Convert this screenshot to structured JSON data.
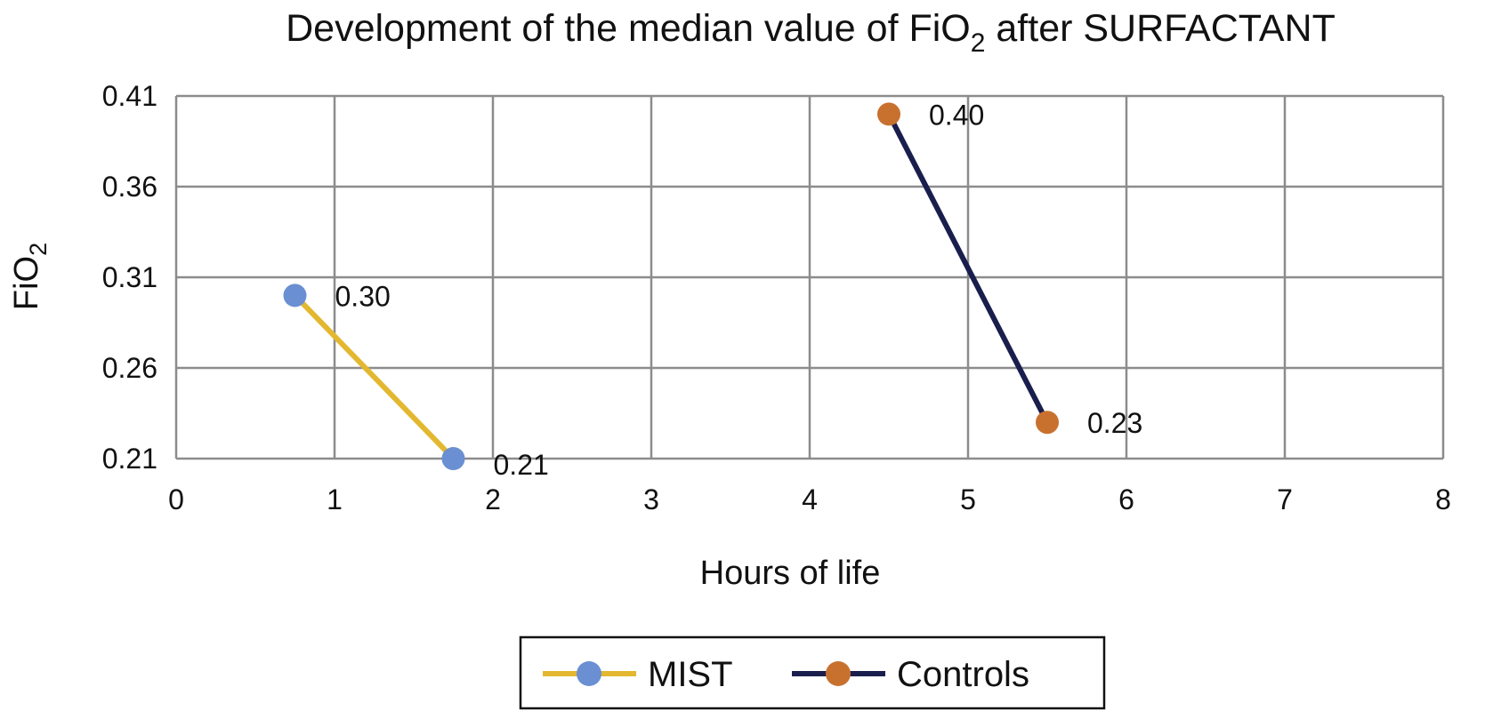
{
  "chart_data": {
    "type": "line",
    "title": "Development of the median value of FiO",
    "title_subscript": "2",
    "title_suffix": " after SURFACTANT",
    "xlabel": "Hours of life",
    "ylabel": "FiO",
    "ylabel_subscript": "2",
    "xlim": [
      0,
      8
    ],
    "ylim": [
      0.21,
      0.41
    ],
    "x_ticks": [
      "0",
      "1",
      "2",
      "3",
      "4",
      "5",
      "6",
      "7",
      "8"
    ],
    "y_ticks": [
      "0.21",
      "0.26",
      "0.31",
      "0.36",
      "0.41"
    ],
    "grid": true,
    "legend_position": "bottom",
    "series": [
      {
        "name": "MIST",
        "line_color": "#E3B830",
        "marker_color": "#6A8FD2",
        "x": [
          0.75,
          1.75
        ],
        "y": [
          0.3,
          0.21
        ],
        "labels": [
          "0.30",
          "0.21"
        ]
      },
      {
        "name": "Controls",
        "line_color": "#1A1E4D",
        "marker_color": "#C8712F",
        "x": [
          4.5,
          5.5
        ],
        "y": [
          0.4,
          0.23
        ],
        "labels": [
          "0.40",
          "0.23"
        ]
      }
    ]
  }
}
